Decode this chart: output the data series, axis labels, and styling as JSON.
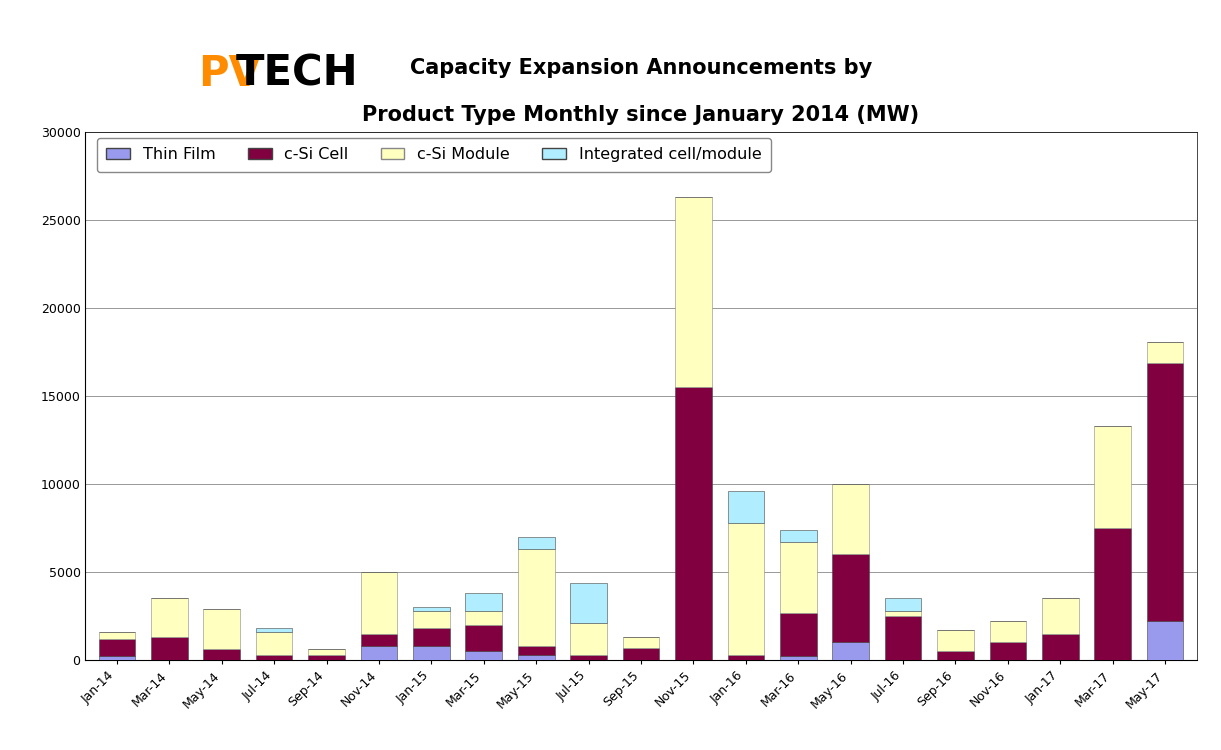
{
  "categories": [
    "Jan-14",
    "Mar-14",
    "May-14",
    "Jul-14",
    "Sep-14",
    "Nov-14",
    "Jan-15",
    "Mar-15",
    "May-15",
    "Jul-15",
    "Sep-15",
    "Nov-15",
    "Jan-16",
    "Mar-16",
    "May-16",
    "Jul-16",
    "Sep-16",
    "Nov-16",
    "Jan-17",
    "Mar-17",
    "May-17"
  ],
  "thin_film": [
    200,
    0,
    0,
    0,
    0,
    800,
    800,
    500,
    300,
    0,
    0,
    0,
    0,
    200,
    1000,
    0,
    0,
    0,
    0,
    0,
    2200
  ],
  "csi_cell": [
    1000,
    1300,
    600,
    300,
    300,
    700,
    1000,
    1500,
    500,
    300,
    700,
    15500,
    300,
    2500,
    5000,
    2500,
    500,
    1000,
    1500,
    7500,
    14700
  ],
  "csi_module": [
    400,
    2200,
    2300,
    1300,
    300,
    3500,
    1000,
    800,
    5500,
    1800,
    600,
    10800,
    7500,
    4000,
    4000,
    300,
    1200,
    1200,
    2000,
    5800,
    1200
  ],
  "integrated": [
    0,
    0,
    0,
    200,
    0,
    0,
    200,
    1000,
    700,
    2300,
    0,
    0,
    1800,
    700,
    0,
    700,
    0,
    0,
    0,
    0,
    0
  ],
  "colors": {
    "thin_film": "#9999ee",
    "csi_cell": "#800040",
    "csi_module": "#ffffc0",
    "integrated": "#b0eeff"
  },
  "title_line1": "Capacity Expansion Announcements by",
  "title_line2": "Product Type Monthly since January 2014 (MW)",
  "ylim": [
    0,
    30000
  ],
  "yticks": [
    0,
    5000,
    10000,
    15000,
    20000,
    25000,
    30000
  ],
  "legend_labels": [
    "Thin Film",
    "c-Si Cell",
    "c-Si Module",
    "Integrated cell/module"
  ],
  "bar_width": 0.7,
  "background_color": "#ffffff",
  "title_fontsize": 15,
  "tick_fontsize": 9,
  "legend_fontsize": 11.5
}
